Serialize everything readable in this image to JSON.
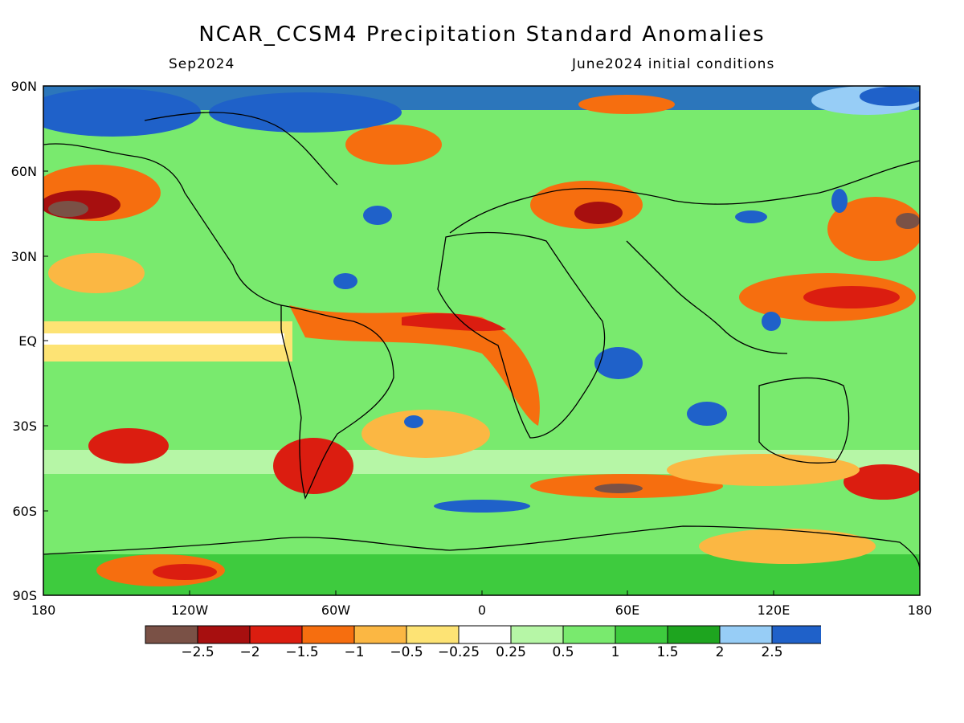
{
  "title": "NCAR_CCSM4 Precipitation Standard Anomalies",
  "valid_month": "Sep2024",
  "init_conditions": "June2024 initial conditions",
  "lat_labels": [
    "90N",
    "60N",
    "30N",
    "EQ",
    "30S",
    "60S",
    "90S"
  ],
  "lon_labels": [
    "180",
    "120W",
    "60W",
    "0",
    "60E",
    "120E",
    "180"
  ],
  "colorbar": {
    "colors": [
      "#7a5146",
      "#a70f0f",
      "#db1d10",
      "#f66e0f",
      "#fbb743",
      "#fde374",
      "#ffffff",
      "#b6f6a6",
      "#79ea6e",
      "#3ecb3e",
      "#1ea51f",
      "#97cdf6",
      "#1f61c9"
    ],
    "labels": [
      "−2.5",
      "−2",
      "−1.5",
      "−1",
      "−0.5",
      "−0.25",
      "0.25",
      "0.5",
      "1",
      "1.5",
      "2",
      "2.5"
    ]
  }
}
